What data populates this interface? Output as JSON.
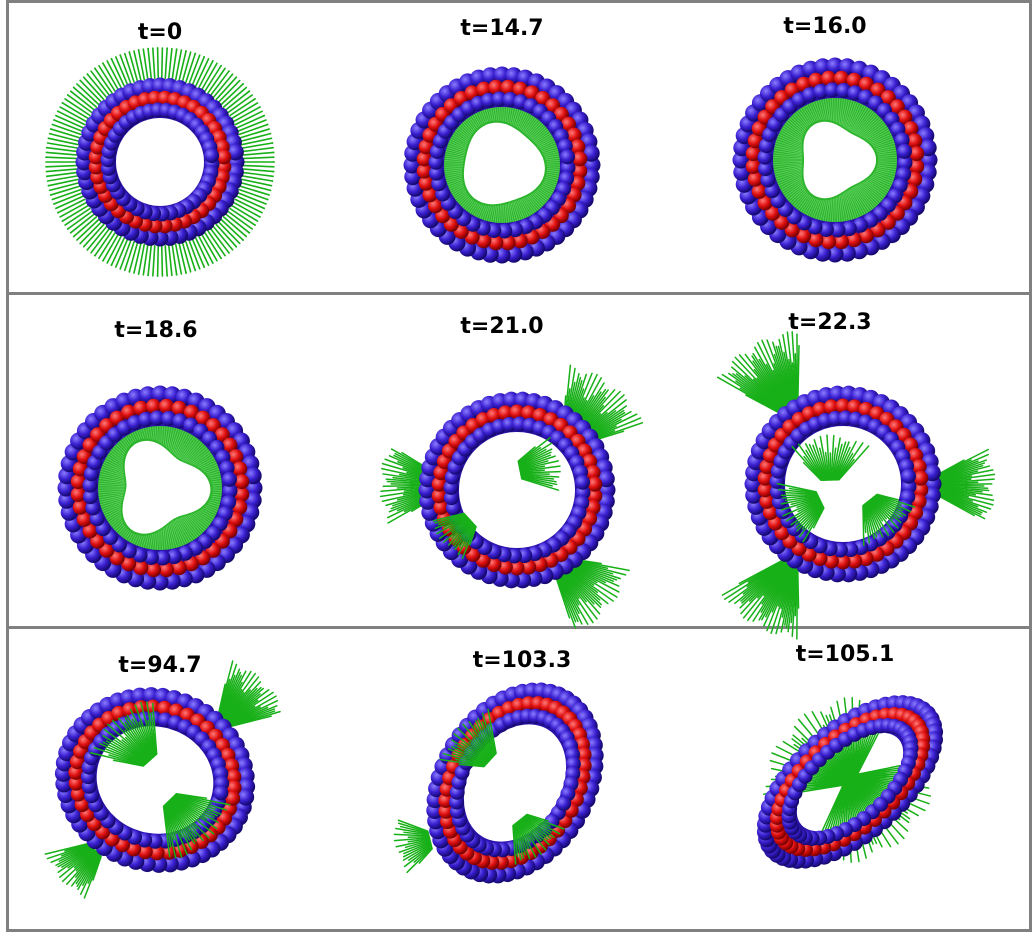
{
  "figure": {
    "rows": [
      {
        "panels": [
          {
            "label": "t=0"
          },
          {
            "label": "t=14.7"
          },
          {
            "label": "t=16.0"
          }
        ]
      },
      {
        "panels": [
          {
            "label": "t=18.6"
          },
          {
            "label": "t=21.0"
          },
          {
            "label": "t=22.3"
          }
        ]
      },
      {
        "panels": [
          {
            "label": "t=94.7"
          },
          {
            "label": "t=103.3"
          },
          {
            "label": "t=105.1"
          }
        ]
      }
    ],
    "colors": {
      "outer_beads": "#3a1fd0",
      "inner_beads": "#e01010",
      "tails": "#18b018",
      "frame": "#808080"
    }
  }
}
